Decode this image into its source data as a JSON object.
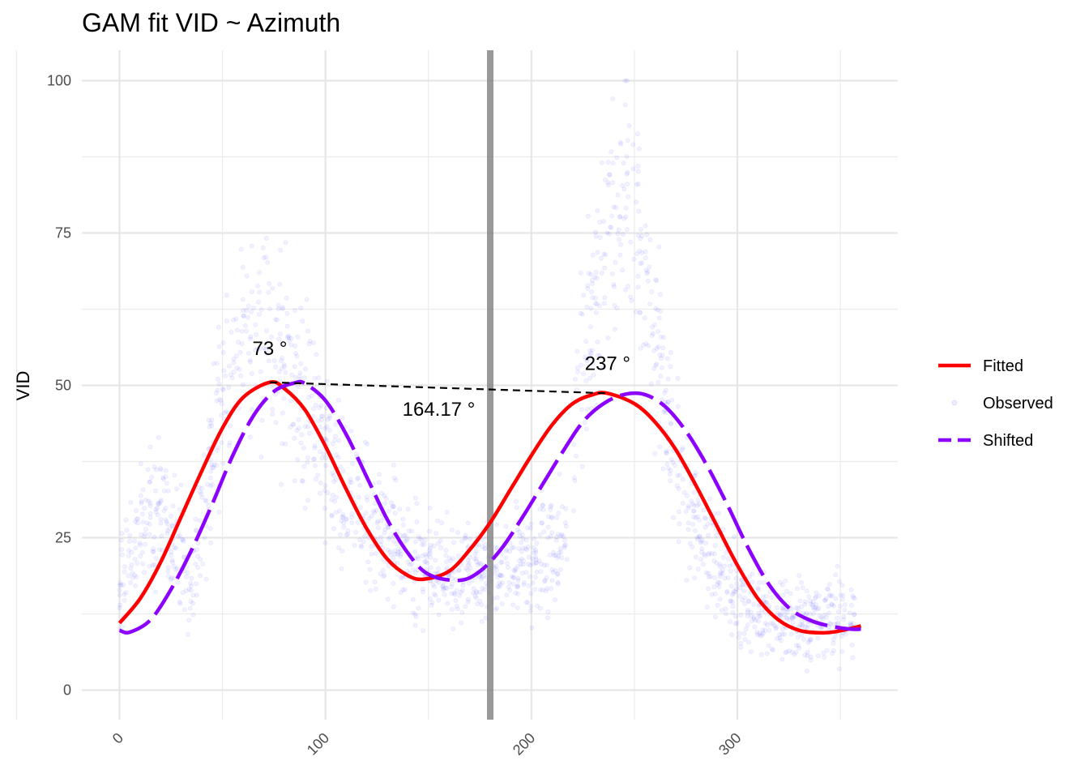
{
  "chart_data": {
    "type": "scatter",
    "title": "GAM fit VID ~ Azimuth",
    "xlabel": "",
    "ylabel": "VID",
    "xlim": [
      -6,
      378
    ],
    "ylim": [
      -5,
      105
    ],
    "x_ticks": [
      "0",
      "100",
      "200",
      "300"
    ],
    "y_ticks": [
      "0",
      "25",
      "50",
      "75",
      "100"
    ],
    "grid": true,
    "legend_position": "right",
    "vline_x": 180,
    "series": [
      {
        "name": "Fitted",
        "style": "solid",
        "color": "#ff0000",
        "x": [
          0,
          10,
          20,
          30,
          40,
          50,
          60,
          73,
          80,
          90,
          100,
          110,
          120,
          130,
          140,
          148,
          160,
          170,
          180,
          190,
          200,
          210,
          220,
          230,
          237,
          250,
          260,
          270,
          280,
          290,
          300,
          310,
          320,
          330,
          340,
          348,
          360
        ],
        "y": [
          11,
          15,
          21,
          28.5,
          36,
          43,
          48,
          50.5,
          49.5,
          46,
          40,
          33,
          26.5,
          21.5,
          18.8,
          18.2,
          19.5,
          23,
          27.5,
          33,
          38.5,
          43.5,
          47,
          48.5,
          48.7,
          47,
          44,
          39.5,
          33.5,
          27,
          20.5,
          15,
          11.5,
          9.8,
          9.4,
          9.6,
          10.5
        ]
      },
      {
        "name": "Shifted",
        "style": "dashed",
        "color": "#8b00ff",
        "x": [
          0,
          5,
          15,
          25,
          35,
          45,
          55,
          65,
          75,
          85,
          90,
          100,
          110,
          120,
          130,
          140,
          150,
          165,
          175,
          185,
          195,
          205,
          215,
          225,
          235,
          245,
          255,
          265,
          275,
          285,
          295,
          305,
          315,
          325,
          335,
          345,
          355,
          360
        ],
        "y": [
          9.8,
          9.5,
          11.5,
          16.5,
          23,
          30.5,
          38.5,
          45,
          49,
          50.4,
          50.3,
          47.5,
          42,
          35,
          28,
          22.5,
          19,
          18,
          19.5,
          23,
          28,
          33.5,
          39,
          44,
          47,
          48.5,
          48.5,
          46.5,
          42.5,
          37,
          30.5,
          23.5,
          17.5,
          13.5,
          11.5,
          10.5,
          10,
          10
        ]
      },
      {
        "name": "Observed",
        "style": "points",
        "color": "#3b3bff",
        "segments": [
          {
            "x": [
              0,
              5,
              10,
              15,
              20,
              25,
              30,
              33,
              36,
              40,
              45,
              50,
              55,
              60,
              65,
              70,
              75,
              80,
              85,
              90,
              95,
              100,
              110,
              120,
              130,
              140,
              150,
              160,
              170,
              180,
              190,
              200,
              205,
              210,
              215,
              218
            ],
            "y": [
              17,
              21,
              25,
              29,
              31,
              29,
              22,
              15,
              19,
              29,
              38,
              46,
              52,
              56,
              58,
              57,
              55,
              53,
              51,
              47,
              43,
              39,
              33,
              28,
              25,
              22,
              20,
              19,
              19,
              19,
              19.5,
              21,
              22,
              23.5,
              25,
              27
            ]
          },
          {
            "x": [
              220,
              225,
              230,
              235,
              240,
              245,
              250,
              255,
              260,
              265,
              270,
              275,
              280,
              285,
              290,
              300,
              310,
              320,
              330,
              340,
              350,
              357
            ],
            "y": [
              44,
              52,
              62,
              72,
              78,
              85,
              80,
              70,
              58,
              44,
              38,
              32,
              27,
              23,
              20,
              16,
              13,
              11.5,
              11,
              12,
              13,
              13
            ]
          }
        ]
      }
    ],
    "annotations": [
      {
        "text": "73 °",
        "x": 73,
        "y": 55
      },
      {
        "text": "237 °",
        "x": 237,
        "y": 52.5
      },
      {
        "text": "164.17 °",
        "x": 155,
        "y": 45
      }
    ],
    "connector": {
      "style": "dashed",
      "from": [
        73,
        50.5
      ],
      "to": [
        237,
        48.7
      ]
    }
  }
}
